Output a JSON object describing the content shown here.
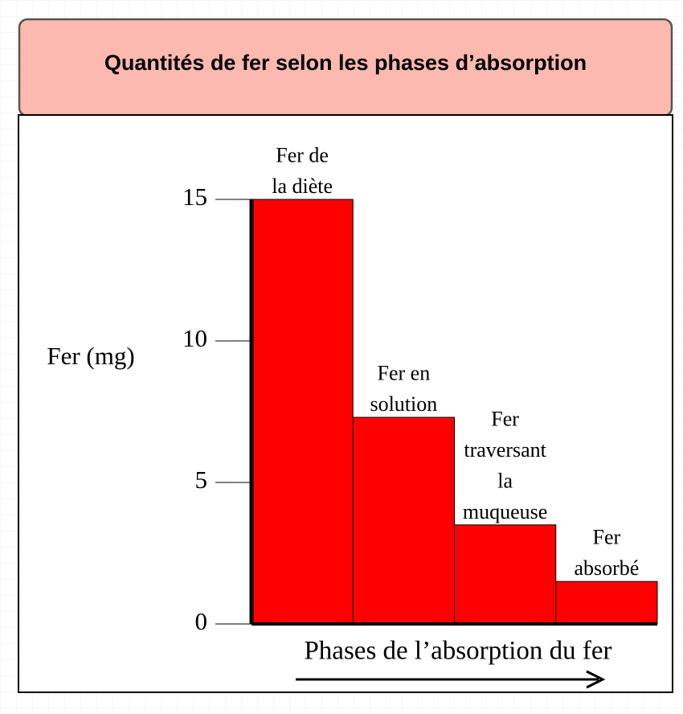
{
  "chart_data": {
    "type": "bar",
    "title": "Quantités de fer selon les phases d’absorption",
    "y_label": "Fer (mg)",
    "x_label": "Phases de l’absorption du fer",
    "categories": [
      [
        "Fer  de",
        "la diète"
      ],
      [
        "Fer  en",
        "solution"
      ],
      [
        "Fer",
        "traversant",
        "la",
        "muqueuse"
      ],
      [
        "Fer",
        "absorbé"
      ]
    ],
    "values": [
      15,
      7.3,
      3.5,
      1.5
    ],
    "color": "#ff0000",
    "ylim": [
      0,
      15
    ],
    "yticks": [
      0,
      5,
      10,
      15
    ]
  }
}
